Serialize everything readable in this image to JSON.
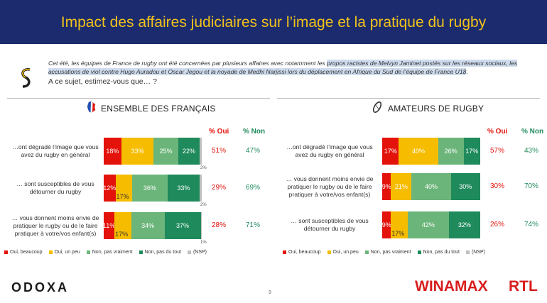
{
  "header": {
    "title": "Impact des affaires judiciaires sur l’image et la pratique du rugby"
  },
  "intro": {
    "text_before": "Cet été, les équipes de France de rugby ont été concernées par plusieurs affaires avec notamment les ",
    "text_highlighted": "propos racistes de Melvyn Jaminet postés sur les réseaux sociaux, les accusations de viol contre Hugo Auradou et Oscar Jegou et la noyade de Medhi Narjissi lors du déplacement en Afrique du Sud de l’équipe de France U18",
    "text_after": ".",
    "question": "A ce sujet, estimez-vous que… ?"
  },
  "colors": {
    "oui_beaucoup": "#e3120b",
    "oui_un_peu": "#f6bd00",
    "non_pas_vraiment": "#6cb57a",
    "non_pas_du_tout": "#1f8a5c",
    "nsp": "#bfbfbf",
    "header_bg": "#1b2b6e",
    "header_text": "#f2c21b",
    "pct_oui": "#e3120b",
    "pct_non": "#1f8a5c"
  },
  "legend": [
    "Oui, beaucoup",
    "Oui, un peu",
    "Non, pas vraiment",
    "Non, pas du tout",
    "(NSP)"
  ],
  "col_heads": {
    "oui": "% Oui",
    "non": "% Non"
  },
  "footer": {
    "brand": "ODOXA",
    "page": "9",
    "sponsor1": "WINAMAX",
    "sponsor2": "RTL"
  },
  "chart_data": [
    {
      "type": "bar",
      "title": "ENSEMBLE DES FRANÇAIS",
      "icon": "france-flag-icon",
      "series": [
        "Oui, beaucoup",
        "Oui, un peu",
        "Non, pas vraiment",
        "Non, pas du tout",
        "(NSP)"
      ],
      "rows": [
        {
          "label": "…ont dégradé l’image que vous avez du rugby en général",
          "values": [
            18,
            33,
            25,
            22,
            2
          ],
          "labels": [
            "18%",
            "33%",
            "25%",
            "22%",
            "2%"
          ],
          "oui": "51%",
          "non": "47%"
        },
        {
          "label": "… sont susceptibles de vous détourner du rugby",
          "values": [
            12,
            17,
            36,
            33,
            2
          ],
          "labels": [
            "12%",
            "17%",
            "36%",
            "33%",
            "2%"
          ],
          "oui": "29%",
          "non": "69%"
        },
        {
          "label": "… vous donnent moins envie de pratiquer le rugby ou de le faire pratiquer à votre/vos enfant(s)",
          "values": [
            11,
            17,
            34,
            37,
            1
          ],
          "labels": [
            "11%",
            "17%",
            "34%",
            "37%",
            "1%"
          ],
          "oui": "28%",
          "non": "71%"
        }
      ]
    },
    {
      "type": "bar",
      "title": "AMATEURS DE RUGBY",
      "icon": "rugby-ball-icon",
      "series": [
        "Oui, beaucoup",
        "Oui, un peu",
        "Non, pas vraiment",
        "Non, pas du tout",
        "(NSP)"
      ],
      "rows": [
        {
          "label": "…ont dégradé l’image que vous avez du rugby en général",
          "values": [
            17,
            40,
            26,
            17,
            0
          ],
          "labels": [
            "17%",
            "40%",
            "26%",
            "17%",
            ""
          ],
          "oui": "57%",
          "non": "43%"
        },
        {
          "label": "… vous donnent moins envie de pratiquer le rugby ou de le faire pratiquer à votre/vos enfant(s)",
          "values": [
            9,
            21,
            40,
            30,
            0
          ],
          "labels": [
            "9%",
            "21%",
            "40%",
            "30%",
            ""
          ],
          "oui": "30%",
          "non": "70%"
        },
        {
          "label": "… sont susceptibles de vous détourner du rugby",
          "values": [
            9,
            17,
            42,
            32,
            0
          ],
          "labels": [
            "9%",
            "17%",
            "42%",
            "32%",
            ""
          ],
          "oui": "26%",
          "non": "74%"
        }
      ]
    }
  ]
}
